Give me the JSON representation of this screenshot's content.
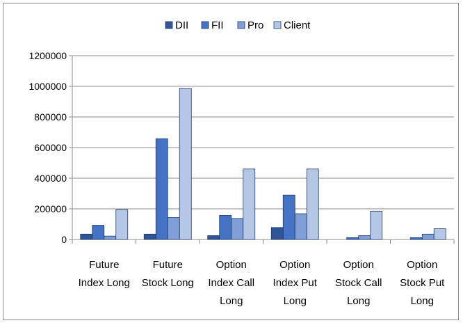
{
  "chart_data": {
    "type": "bar",
    "categories": [
      [
        "Future",
        "Index Long"
      ],
      [
        "Future",
        "Stock Long"
      ],
      [
        "Option",
        "Index Call",
        "Long"
      ],
      [
        "Option",
        "Index Put",
        "Long"
      ],
      [
        "Option",
        "Stock Call",
        "Long"
      ],
      [
        "Option",
        "Stock Put",
        "Long"
      ]
    ],
    "series": [
      {
        "name": "DII",
        "color": "#2f5597",
        "values": [
          35000,
          35000,
          25000,
          78000,
          0,
          0
        ]
      },
      {
        "name": "FII",
        "color": "#4472c4",
        "values": [
          93000,
          658000,
          157000,
          290000,
          12000,
          12000
        ]
      },
      {
        "name": "Pro",
        "color": "#7f9fd6",
        "values": [
          22000,
          143000,
          137000,
          168000,
          25000,
          35000
        ]
      },
      {
        "name": "Client",
        "color": "#b4c7e7",
        "values": [
          195000,
          985000,
          460000,
          460000,
          185000,
          70000
        ]
      }
    ],
    "ylim": [
      0,
      1200000
    ],
    "yticks": [
      "1200000",
      "1000000",
      "800000",
      "600000",
      "400000",
      "200000",
      "0"
    ],
    "legend_position": "top",
    "grid": true
  }
}
